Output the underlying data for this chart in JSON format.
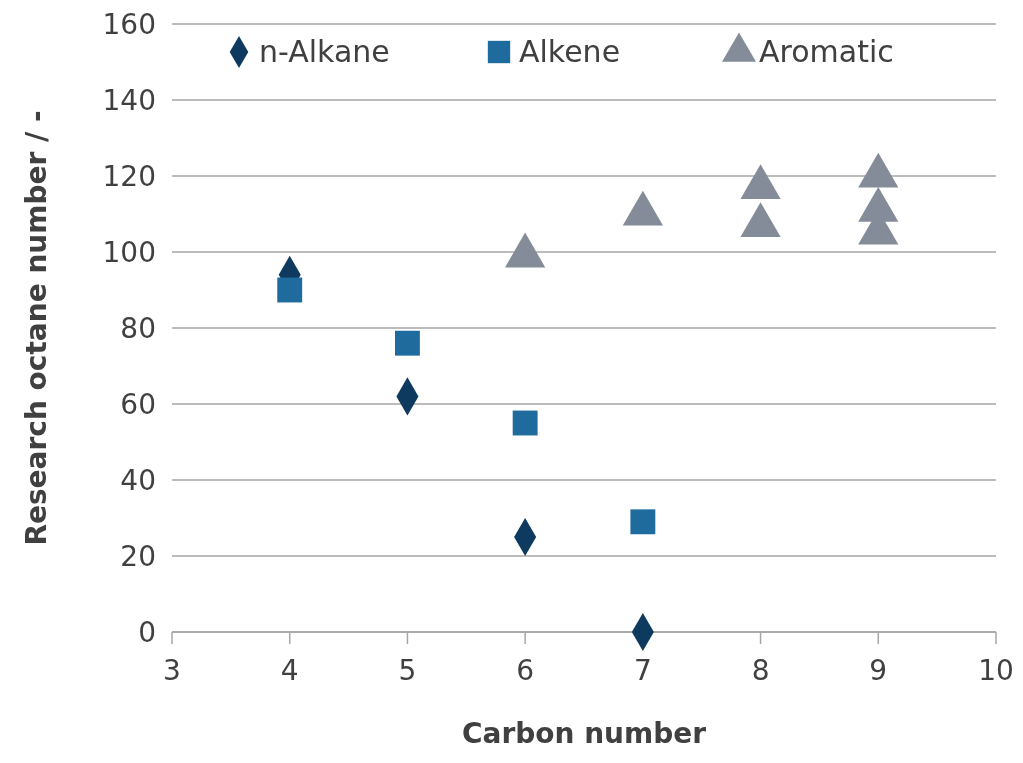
{
  "chart_data": {
    "type": "scatter",
    "xlabel": "Carbon number",
    "ylabel": "Research octane number / -",
    "xlim": [
      3,
      10
    ],
    "xticks": [
      3,
      4,
      5,
      6,
      7,
      8,
      9,
      10
    ],
    "ylim": [
      0,
      160
    ],
    "yticks": [
      0,
      20,
      40,
      60,
      80,
      100,
      120,
      140,
      160
    ],
    "grid": "y",
    "legend": "top",
    "series": [
      {
        "name": "n-Alkane",
        "color": "#0d3a5e",
        "marker": "diamond",
        "x": [
          4,
          5,
          6,
          7
        ],
        "values": [
          94,
          62,
          25,
          0
        ]
      },
      {
        "name": "Alkene",
        "color": "#1f6b9e",
        "marker": "square",
        "x": [
          4,
          5,
          6,
          7
        ],
        "values": [
          90,
          76,
          55,
          29
        ]
      },
      {
        "name": "Aromatic",
        "color": "#848c99",
        "marker": "triangle",
        "x": [
          6,
          7,
          8,
          8,
          9,
          9,
          9
        ],
        "values": [
          99,
          110,
          117,
          107,
          120,
          111,
          105
        ]
      }
    ]
  }
}
